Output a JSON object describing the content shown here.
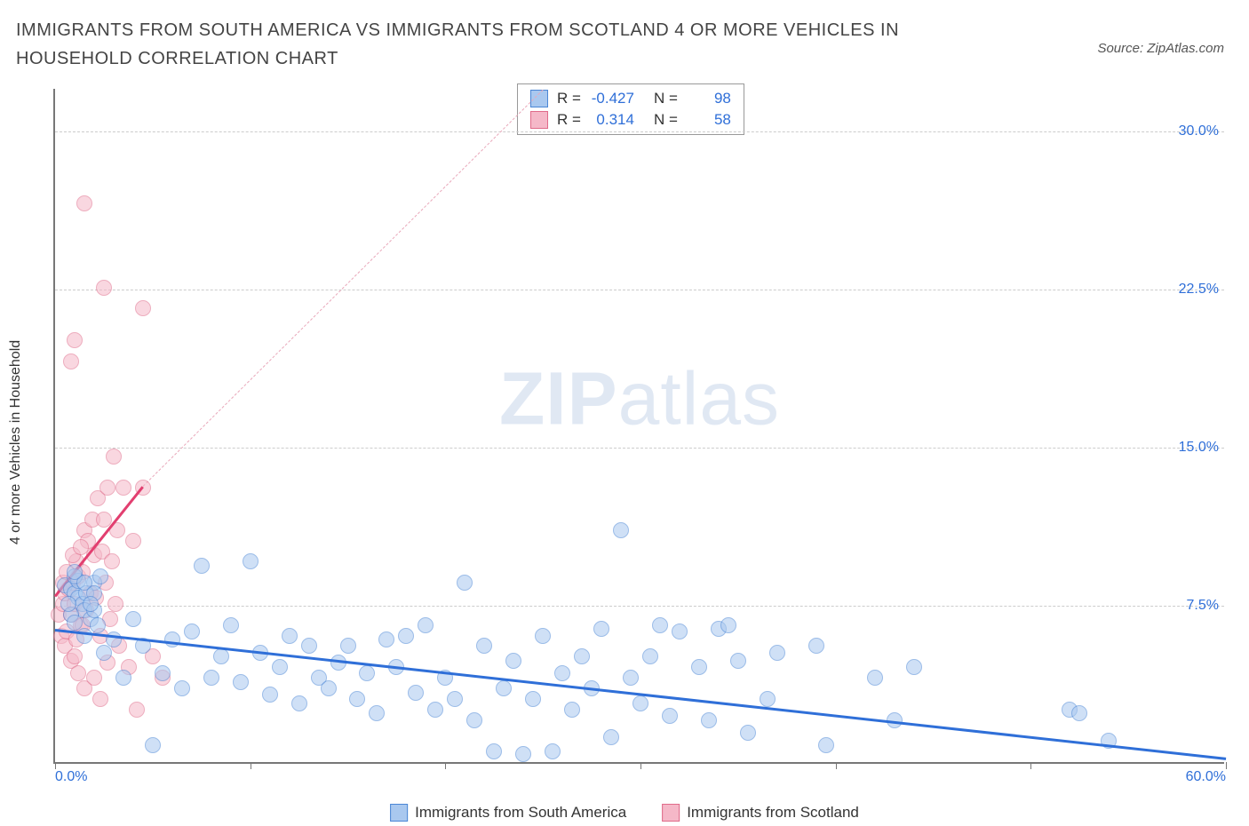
{
  "title": "IMMIGRANTS FROM SOUTH AMERICA VS IMMIGRANTS FROM SCOTLAND 4 OR MORE VEHICLES IN HOUSEHOLD CORRELATION CHART",
  "source": "Source: ZipAtlas.com",
  "y_axis_label": "4 or more Vehicles in Household",
  "watermark_bold": "ZIP",
  "watermark_light": "atlas",
  "chart": {
    "type": "scatter",
    "background_color": "#ffffff",
    "grid_color": "#cccccc",
    "axis_color": "#777777",
    "tick_label_color": "#2f6fd8",
    "xlim": [
      0,
      60
    ],
    "ylim": [
      0,
      32
    ],
    "x_ticks": [
      0,
      10,
      20,
      30,
      40,
      50,
      60
    ],
    "x_tick_labels": {
      "0": "0.0%",
      "60": "60.0%"
    },
    "y_gridlines": [
      7.5,
      15.0,
      22.5,
      30.0
    ],
    "y_tick_labels": [
      "7.5%",
      "15.0%",
      "22.5%",
      "30.0%"
    ],
    "marker_radius": 9,
    "marker_stroke_width": 1.5,
    "title_fontsize": 20,
    "label_fontsize": 16
  },
  "series": [
    {
      "name": "Immigrants from South America",
      "fill": "#a9c8ef",
      "stroke": "#4a86d6",
      "fill_opacity": 0.55,
      "r_value": "-0.427",
      "n_value": "98",
      "trend": {
        "x1": 0,
        "y1": 6.4,
        "x2": 60,
        "y2": 0.3,
        "color": "#2f6fd8",
        "width": 3,
        "dash": false
      },
      "points": [
        [
          0.5,
          8.4
        ],
        [
          0.8,
          8.2
        ],
        [
          1.0,
          8.0
        ],
        [
          1.2,
          7.8
        ],
        [
          1.4,
          7.5
        ],
        [
          1.5,
          7.2
        ],
        [
          1.8,
          6.8
        ],
        [
          2.0,
          8.5
        ],
        [
          2.2,
          6.5
        ],
        [
          2.5,
          5.2
        ],
        [
          3.0,
          5.8
        ],
        [
          3.5,
          4.0
        ],
        [
          4.0,
          6.8
        ],
        [
          4.5,
          5.5
        ],
        [
          5.0,
          0.8
        ],
        [
          5.5,
          4.2
        ],
        [
          6.0,
          5.8
        ],
        [
          6.5,
          3.5
        ],
        [
          7.0,
          6.2
        ],
        [
          7.5,
          9.3
        ],
        [
          8.0,
          4.0
        ],
        [
          8.5,
          5.0
        ],
        [
          9.0,
          6.5
        ],
        [
          9.5,
          3.8
        ],
        [
          10.0,
          9.5
        ],
        [
          10.5,
          5.2
        ],
        [
          11.0,
          3.2
        ],
        [
          11.5,
          4.5
        ],
        [
          12.0,
          6.0
        ],
        [
          12.5,
          2.8
        ],
        [
          13.0,
          5.5
        ],
        [
          13.5,
          4.0
        ],
        [
          14.0,
          3.5
        ],
        [
          14.5,
          4.7
        ],
        [
          15.0,
          5.5
        ],
        [
          15.5,
          3.0
        ],
        [
          16.0,
          4.2
        ],
        [
          16.5,
          2.3
        ],
        [
          17.0,
          5.8
        ],
        [
          17.5,
          4.5
        ],
        [
          18.0,
          6.0
        ],
        [
          18.5,
          3.3
        ],
        [
          19.0,
          6.5
        ],
        [
          19.5,
          2.5
        ],
        [
          20.0,
          4.0
        ],
        [
          20.5,
          3.0
        ],
        [
          21.0,
          8.5
        ],
        [
          21.5,
          2.0
        ],
        [
          22.0,
          5.5
        ],
        [
          22.5,
          0.5
        ],
        [
          23.0,
          3.5
        ],
        [
          23.5,
          4.8
        ],
        [
          24.0,
          0.4
        ],
        [
          24.5,
          3.0
        ],
        [
          25.0,
          6.0
        ],
        [
          25.5,
          0.5
        ],
        [
          26.0,
          4.2
        ],
        [
          26.5,
          2.5
        ],
        [
          27.0,
          5.0
        ],
        [
          27.5,
          3.5
        ],
        [
          28.0,
          6.3
        ],
        [
          28.5,
          1.2
        ],
        [
          29.0,
          11.0
        ],
        [
          29.5,
          4.0
        ],
        [
          30.0,
          2.8
        ],
        [
          30.5,
          5.0
        ],
        [
          31.0,
          6.5
        ],
        [
          31.5,
          2.2
        ],
        [
          32.0,
          6.2
        ],
        [
          33.0,
          4.5
        ],
        [
          33.5,
          2.0
        ],
        [
          34.0,
          6.3
        ],
        [
          34.5,
          6.5
        ],
        [
          35.0,
          4.8
        ],
        [
          35.5,
          1.4
        ],
        [
          36.5,
          3.0
        ],
        [
          37.0,
          5.2
        ],
        [
          39.0,
          5.5
        ],
        [
          39.5,
          0.8
        ],
        [
          42.0,
          4.0
        ],
        [
          43.0,
          2.0
        ],
        [
          44.0,
          4.5
        ],
        [
          52.0,
          2.5
        ],
        [
          52.5,
          2.3
        ],
        [
          54.0,
          1.0
        ],
        [
          1.2,
          8.6
        ],
        [
          1.6,
          8.0
        ],
        [
          2.0,
          7.2
        ],
        [
          0.8,
          7.0
        ],
        [
          1.0,
          6.6
        ],
        [
          1.5,
          6.0
        ],
        [
          2.3,
          8.8
        ],
        [
          1.0,
          8.8
        ],
        [
          1.5,
          8.5
        ],
        [
          2.0,
          8.0
        ],
        [
          1.8,
          7.5
        ],
        [
          0.7,
          7.5
        ],
        [
          1.0,
          9.0
        ]
      ]
    },
    {
      "name": "Immigrants from Scotland",
      "fill": "#f5b8c8",
      "stroke": "#e06b8a",
      "fill_opacity": 0.55,
      "r_value": "0.314",
      "n_value": "58",
      "trend": {
        "x1": 0,
        "y1": 8.0,
        "x2": 4.5,
        "y2": 13.2,
        "color": "#e23f70",
        "width": 3,
        "dash": false
      },
      "trend_ext": {
        "x1": 4.5,
        "y1": 13.2,
        "x2": 25,
        "y2": 32,
        "color": "#e9a8ba",
        "width": 1,
        "dash": true
      },
      "points": [
        [
          0.2,
          7.0
        ],
        [
          0.4,
          7.5
        ],
        [
          0.5,
          8.0
        ],
        [
          0.7,
          8.2
        ],
        [
          0.8,
          7.0
        ],
        [
          0.9,
          8.5
        ],
        [
          1.0,
          7.5
        ],
        [
          1.1,
          9.5
        ],
        [
          1.2,
          8.8
        ],
        [
          1.3,
          6.5
        ],
        [
          1.4,
          9.0
        ],
        [
          1.5,
          11.0
        ],
        [
          1.6,
          7.2
        ],
        [
          1.7,
          10.5
        ],
        [
          1.8,
          8.0
        ],
        [
          1.9,
          11.5
        ],
        [
          2.0,
          9.8
        ],
        [
          2.1,
          7.8
        ],
        [
          2.2,
          12.5
        ],
        [
          2.3,
          6.0
        ],
        [
          2.4,
          10.0
        ],
        [
          2.5,
          11.5
        ],
        [
          2.6,
          8.5
        ],
        [
          2.7,
          13.0
        ],
        [
          2.8,
          6.8
        ],
        [
          2.9,
          9.5
        ],
        [
          3.0,
          14.5
        ],
        [
          3.1,
          7.5
        ],
        [
          3.2,
          11.0
        ],
        [
          3.3,
          5.5
        ],
        [
          3.5,
          13.0
        ],
        [
          3.8,
          4.5
        ],
        [
          4.0,
          10.5
        ],
        [
          4.2,
          2.5
        ],
        [
          4.5,
          13.0
        ],
        [
          5.0,
          5.0
        ],
        [
          5.5,
          4.0
        ],
        [
          0.8,
          19.0
        ],
        [
          1.0,
          20.0
        ],
        [
          1.5,
          26.5
        ],
        [
          2.5,
          22.5
        ],
        [
          4.5,
          21.5
        ],
        [
          0.3,
          6.0
        ],
        [
          0.5,
          5.5
        ],
        [
          0.6,
          6.2
        ],
        [
          0.8,
          4.8
        ],
        [
          1.0,
          5.0
        ],
        [
          1.2,
          4.2
        ],
        [
          1.5,
          3.5
        ],
        [
          2.0,
          4.0
        ],
        [
          2.3,
          3.0
        ],
        [
          2.7,
          4.7
        ],
        [
          1.4,
          6.5
        ],
        [
          1.1,
          5.8
        ],
        [
          0.9,
          9.8
        ],
        [
          1.3,
          10.2
        ],
        [
          0.4,
          8.5
        ],
        [
          0.6,
          9.0
        ]
      ]
    }
  ],
  "legend": {
    "series_a": "Immigrants from South America",
    "series_b": "Immigrants from Scotland"
  },
  "stats_box": {
    "r_label": "R =",
    "n_label": "N ="
  }
}
